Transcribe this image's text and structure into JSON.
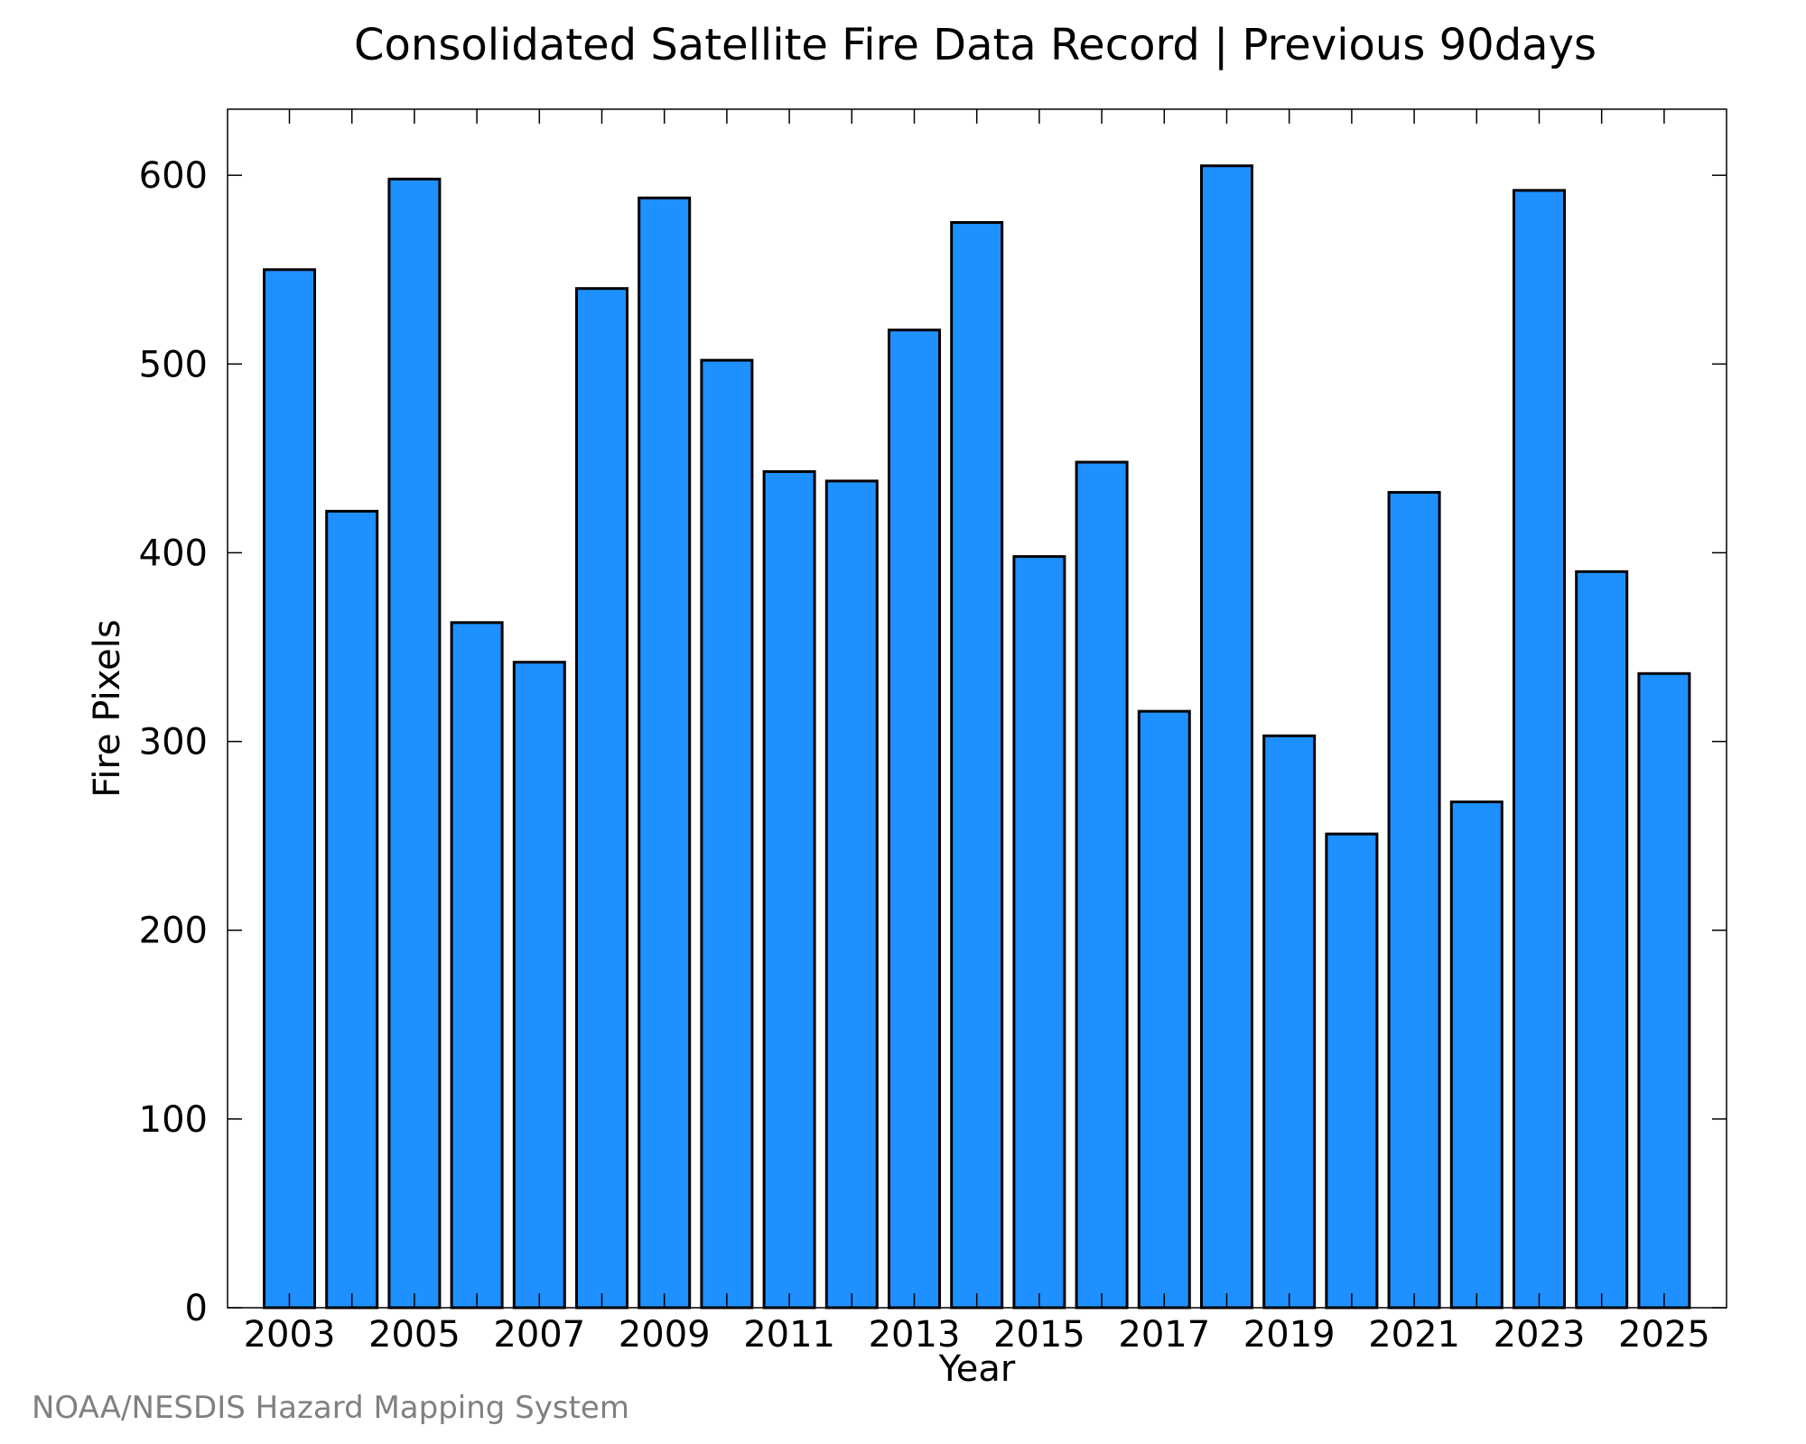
{
  "chart_data": {
    "type": "bar",
    "title": "Consolidated Satellite Fire Data Record | Previous 90days",
    "xlabel": "Year",
    "ylabel": "Fire Pixels",
    "x_tick_labels": [
      "2003",
      "2005",
      "2007",
      "2009",
      "2011",
      "2013",
      "2015",
      "2017",
      "2019",
      "2021",
      "2023",
      "2025"
    ],
    "y_tick_labels": [
      "0",
      "100",
      "200",
      "300",
      "400",
      "500",
      "600"
    ],
    "ylim": [
      0,
      635
    ],
    "grid": false,
    "categories": [
      2003,
      2004,
      2005,
      2006,
      2007,
      2008,
      2009,
      2010,
      2011,
      2012,
      2013,
      2014,
      2015,
      2016,
      2017,
      2018,
      2019,
      2020,
      2021,
      2022,
      2023,
      2024,
      2025
    ],
    "values": [
      550,
      422,
      598,
      363,
      342,
      540,
      588,
      502,
      443,
      438,
      518,
      575,
      398,
      448,
      316,
      605,
      303,
      251,
      432,
      268,
      592,
      390,
      336
    ],
    "bar_color": "#1e90ff",
    "bar_edge_color": "#000000"
  },
  "credit": "NOAA/NESDIS Hazard Mapping System"
}
